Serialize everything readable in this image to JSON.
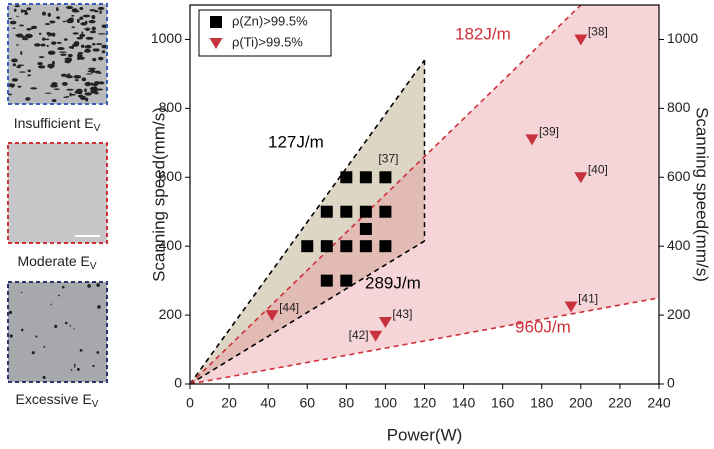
{
  "panels": [
    {
      "caption": "Insufficient E",
      "subscript": "V"
    },
    {
      "caption": "Moderate E",
      "subscript": "V"
    },
    {
      "caption": "Excessive E",
      "subscript": "V"
    }
  ],
  "chart_data": {
    "type": "scatter",
    "xlabel": "Power(W)",
    "ylabel": "Scanning speed(mm/s)",
    "y2label": "Scanning speed(mm/s)",
    "xlim": [
      0,
      240
    ],
    "xticks": [
      0,
      20,
      40,
      60,
      80,
      100,
      120,
      140,
      160,
      180,
      200,
      220,
      240
    ],
    "ylim": [
      0,
      1100
    ],
    "yticks": [
      0,
      200,
      400,
      600,
      800,
      1000
    ],
    "y2lim": [
      0,
      1100
    ],
    "y2ticks": [
      0,
      200,
      400,
      600,
      800,
      1000
    ],
    "legend": "upper left",
    "series": [
      {
        "name": "ρ(Zn)>99.5%",
        "color": "#000000",
        "marker": "square",
        "x": [
          80,
          90,
          100,
          70,
          80,
          90,
          100,
          90,
          60,
          70,
          80,
          90,
          100,
          70,
          80
        ],
        "values": [
          600,
          600,
          600,
          500,
          500,
          500,
          500,
          450,
          400,
          400,
          400,
          400,
          400,
          300,
          300
        ],
        "point_labels": [
          null,
          null,
          "[37]",
          null,
          null,
          null,
          null,
          null,
          null,
          null,
          null,
          null,
          null,
          null,
          null
        ]
      },
      {
        "name": "ρ(Ti)>99.5%",
        "color": "#c8323c",
        "marker": "triangle-down",
        "x": [
          200,
          175,
          200,
          195,
          95,
          100,
          42
        ],
        "values": [
          1000,
          710,
          600,
          225,
          140,
          180,
          200
        ],
        "point_labels": [
          "[38]",
          "[39]",
          "[40]",
          "[41]",
          "[42]",
          "[43]",
          "[44]"
        ]
      }
    ],
    "lines": [
      {
        "label": "127J/m",
        "color": "#000000",
        "x": [
          0,
          120
        ],
        "values": [
          0,
          940
        ]
      },
      {
        "label": "289J/m",
        "color": "#000000",
        "x": [
          0,
          120
        ],
        "values": [
          0,
          415
        ]
      },
      {
        "label": "182J/m",
        "color": "#d0303a",
        "x": [
          0,
          200
        ],
        "values": [
          0,
          1100
        ]
      },
      {
        "label": "960J/m",
        "color": "#d0303a",
        "x": [
          0,
          240
        ],
        "values": [
          0,
          250
        ]
      }
    ],
    "regions": [
      {
        "color": "#b5a47c"
      },
      {
        "color": "#e8909b"
      }
    ]
  }
}
